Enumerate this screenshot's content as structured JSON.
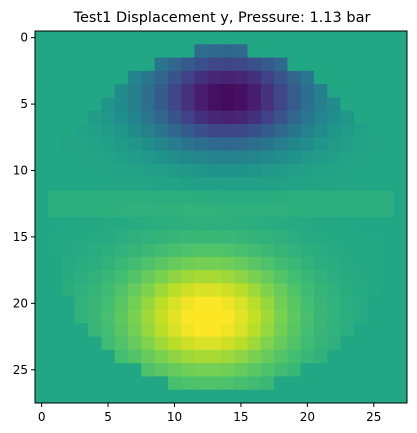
{
  "chart_data": {
    "type": "heatmap",
    "title": "Test1 Displacement y, Pressure:     1.13 bar",
    "xlabel": "",
    "ylabel": "",
    "rows": 28,
    "cols": 28,
    "x_ticks": [
      0,
      5,
      10,
      15,
      20,
      25
    ],
    "y_ticks": [
      0,
      5,
      10,
      15,
      20,
      25
    ],
    "xlim": [
      -0.5,
      27.5
    ],
    "ylim": [
      27.5,
      -0.5
    ],
    "grid": false,
    "colormap": "viridis",
    "background_value": 0.6,
    "mask": {
      "center_col": 13.5,
      "center_row": 13.8,
      "radius": 12.9
    },
    "field": {
      "base": 0.6,
      "lobes": [
        {
          "row": 4.5,
          "col": 14.0,
          "sigma_row": 2.8,
          "sigma_col": 4.5,
          "amp": -0.58
        },
        {
          "row": 21.0,
          "col": 12.5,
          "sigma_row": 3.2,
          "sigma_col": 4.5,
          "amp": 0.42
        }
      ]
    }
  }
}
